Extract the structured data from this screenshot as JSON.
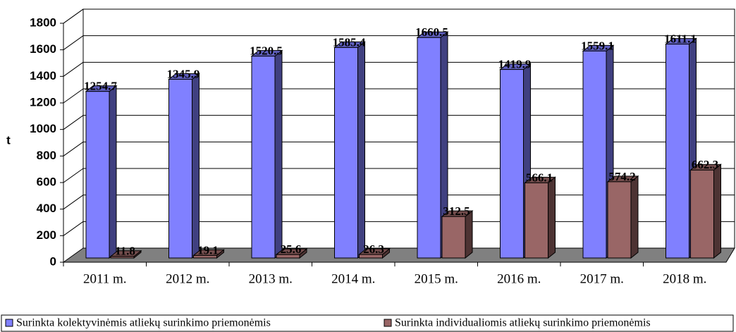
{
  "chart_data": {
    "type": "bar3d",
    "categories": [
      "2011 m.",
      "2012 m.",
      "2013 m.",
      "2014 m.",
      "2015 m.",
      "2016 m.",
      "2017 m.",
      "2018 m."
    ],
    "series": [
      {
        "name": "Surinkta kolektyvinėmis atliekų surinkimo priemonėmis",
        "color": "#8080ff",
        "values": [
          1254.7,
          1345.9,
          1520.5,
          1585.4,
          1660.5,
          1419.9,
          1559.1,
          1611.1
        ]
      },
      {
        "name": "Surinkta individualiomis atliekų surinkimo priemonėmis",
        "color": "#996666",
        "values": [
          11.8,
          19.1,
          25.6,
          26.3,
          312.5,
          566.1,
          574.2,
          662.3
        ]
      }
    ],
    "ylabel": "t",
    "ylim": [
      0,
      1800
    ],
    "yticks": [
      0,
      200,
      400,
      600,
      800,
      1000,
      1200,
      1400,
      1600,
      1800
    ],
    "grid": true,
    "legend": "bottom"
  }
}
